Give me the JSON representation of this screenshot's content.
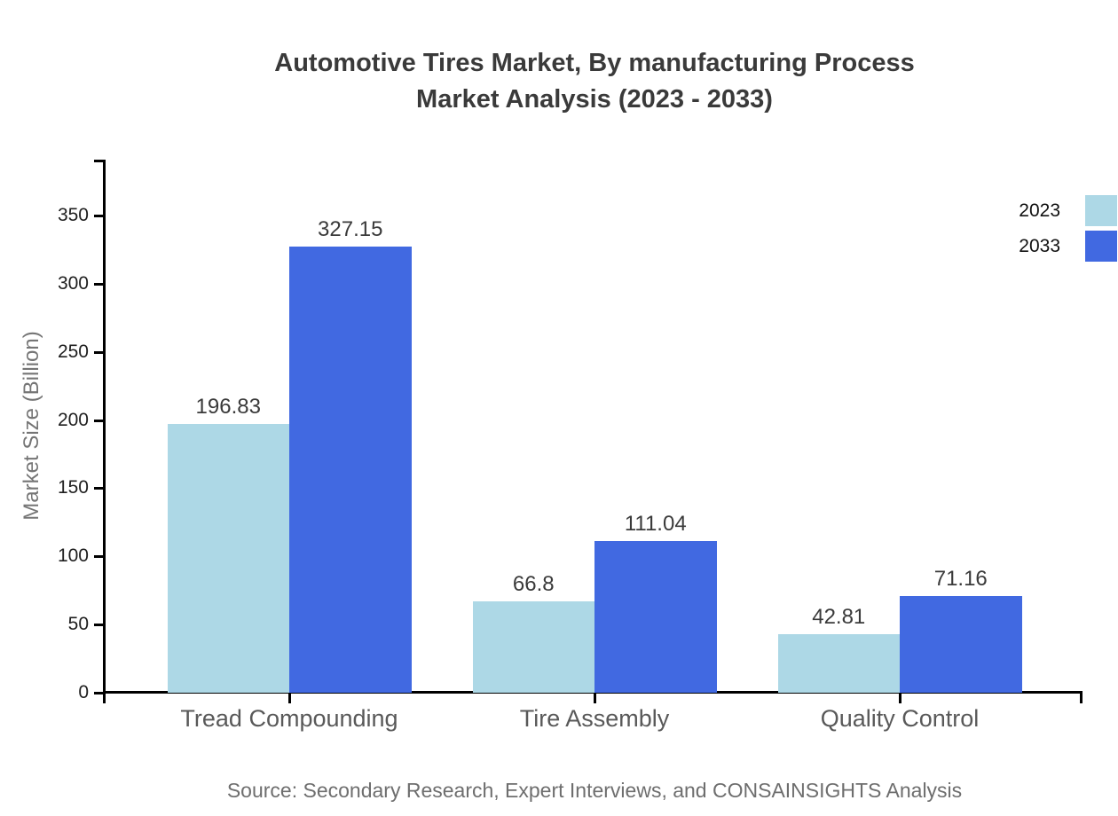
{
  "title": {
    "line1": "Automotive Tires Market, By manufacturing Process",
    "line2": "Market Analysis (2023 - 2033)"
  },
  "source": "Source: Secondary Research, Expert Interviews, and CONSAINSIGHTS Analysis",
  "chart_data": {
    "type": "bar",
    "title": "Automotive Tires Market, By manufacturing Process Market Analysis (2023 - 2033)",
    "categories": [
      "Tread Compounding",
      "Tire Assembly",
      "Quality Control"
    ],
    "series": [
      {
        "name": "2023",
        "color": "#ADD8E6",
        "values": [
          196.83,
          66.8,
          42.81
        ]
      },
      {
        "name": "2033",
        "color": "#4169E1",
        "values": [
          327.15,
          111.04,
          71.16
        ]
      }
    ],
    "xlabel": "",
    "ylabel": "Market Size (Billion)",
    "yticks": [
      0,
      50,
      100,
      150,
      200,
      250,
      300,
      350
    ],
    "ylim": [
      0,
      391
    ],
    "grid": false,
    "value_labels": true,
    "legend_position": "upper-right"
  }
}
